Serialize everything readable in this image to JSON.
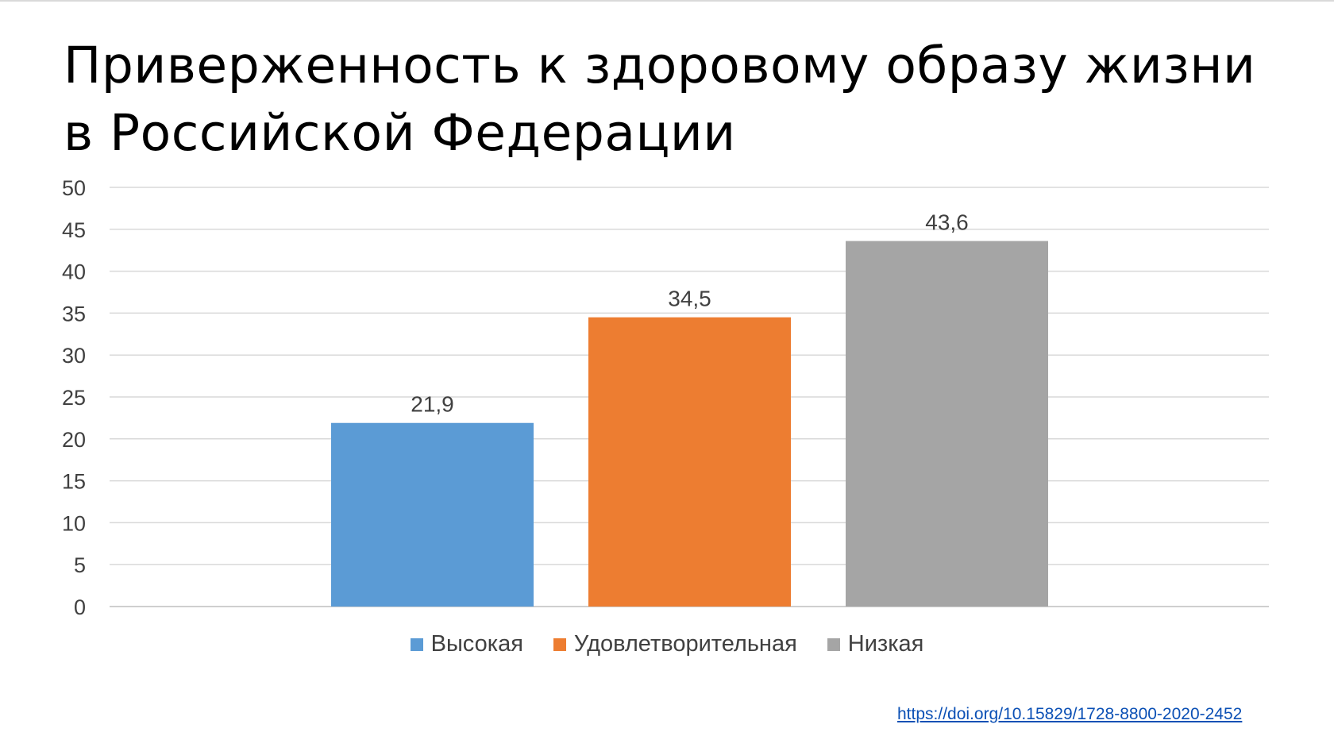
{
  "slide": {
    "title_line1": "Приверженность к здоровому образу жизни",
    "title_line2": "в Российской Федерации",
    "source_link": "https://doi.org/10.15829/1728-8800-2020-2452"
  },
  "chart_data": {
    "type": "bar",
    "title": "",
    "xlabel": "",
    "ylabel": "",
    "ylim": [
      0,
      50
    ],
    "y_ticks": [
      0,
      5,
      10,
      15,
      20,
      25,
      30,
      35,
      40,
      45,
      50
    ],
    "grid": true,
    "legend_position": "bottom",
    "series": [
      {
        "name": "Высокая",
        "value": 21.9,
        "label": "21,9",
        "color": "#5b9bd5"
      },
      {
        "name": "Удовлетворительная",
        "value": 34.5,
        "label": "34,5",
        "color": "#ed7d31"
      },
      {
        "name": "Низкая",
        "value": 43.6,
        "label": "43,6",
        "color": "#a5a5a5"
      }
    ]
  }
}
